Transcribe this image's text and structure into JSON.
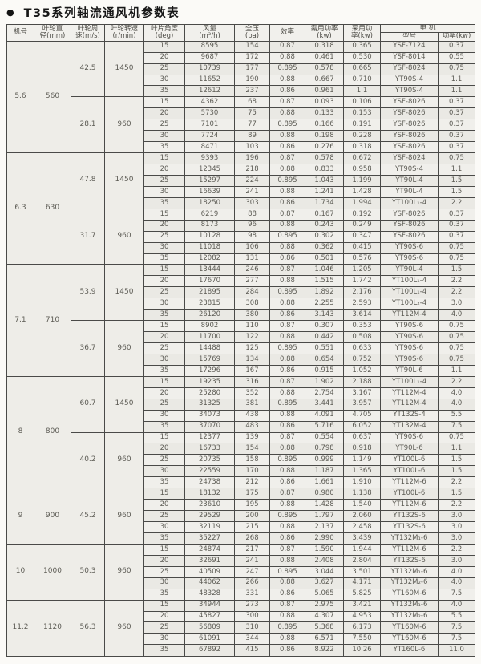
{
  "title": "T35系列轴流通风机参数表",
  "bullet": "●",
  "colors": {
    "page_bg": "#fbfaf7",
    "cell_bg": "#f0efeb",
    "border": "#4a4a48",
    "text": "#5d5c55",
    "title_text": "#171717"
  },
  "table": {
    "headers": {
      "fan_no": "机号",
      "diameter": "叶轮直\n径(mm)",
      "tip_speed": "叶轮周\n速(m/s)",
      "rpm": "叶轮转速\n(r/min)",
      "blade_angle": "叶片角度\n(deg)",
      "flow": "风量\n(m³/h)",
      "pressure": "全压\n(pa)",
      "efficiency": "效率",
      "required_power": "需用功率\n(kw)",
      "adopted_power": "采用功\n率(kw)",
      "motor": "电  机",
      "motor_model": "型号",
      "motor_power": "功率(kw)"
    },
    "column_semantics": [
      "blade_angle_deg",
      "flow_m3h",
      "pressure_pa",
      "efficiency",
      "required_power_kw",
      "adopted_power_kw",
      "motor_model",
      "motor_power_kw"
    ],
    "blocks": [
      {
        "no": "5.6",
        "diameter": "560",
        "groups": [
          {
            "speed": "42.5",
            "rpm": "1450",
            "rows": [
              [
                "15",
                "8595",
                "154",
                "0.87",
                "0.318",
                "0.365",
                "YSF-7124",
                "0.37"
              ],
              [
                "20",
                "9687",
                "172",
                "0.88",
                "0.461",
                "0.530",
                "YSF-8014",
                "0.55"
              ],
              [
                "25",
                "10739",
                "177",
                "0.895",
                "0.578",
                "0.665",
                "YSF-8024",
                "0.75"
              ],
              [
                "30",
                "11652",
                "190",
                "0.88",
                "0.667",
                "0.710",
                "YT90S-4",
                "1.1"
              ],
              [
                "35",
                "12612",
                "237",
                "0.86",
                "0.961",
                "1.1",
                "YT90S-4",
                "1.1"
              ]
            ]
          },
          {
            "speed": "28.1",
            "rpm": "960",
            "rows": [
              [
                "15",
                "4362",
                "68",
                "0.87",
                "0.093",
                "0.106",
                "YSF-8026",
                "0.37"
              ],
              [
                "20",
                "5730",
                "75",
                "0.88",
                "0.133",
                "0.153",
                "YSF-8026",
                "0.37"
              ],
              [
                "25",
                "7101",
                "77",
                "0.895",
                "0.166",
                "0.191",
                "YSF-8026",
                "0.37"
              ],
              [
                "30",
                "7724",
                "89",
                "0.88",
                "0.198",
                "0.228",
                "YSF-8026",
                "0.37"
              ],
              [
                "35",
                "8471",
                "103",
                "0.86",
                "0.276",
                "0.318",
                "YSF-8026",
                "0.37"
              ]
            ]
          }
        ]
      },
      {
        "no": "6.3",
        "diameter": "630",
        "groups": [
          {
            "speed": "47.8",
            "rpm": "1450",
            "rows": [
              [
                "15",
                "9393",
                "196",
                "0.87",
                "0.578",
                "0.672",
                "YSF-8024",
                "0.75"
              ],
              [
                "20",
                "12345",
                "218",
                "0.88",
                "0.833",
                "0.958",
                "YT90S-4",
                "1.1"
              ],
              [
                "25",
                "15297",
                "224",
                "0.895",
                "1.043",
                "1.199",
                "YT90L-4",
                "1.5"
              ],
              [
                "30",
                "16639",
                "241",
                "0.88",
                "1.241",
                "1.428",
                "YT90L-4",
                "1.5"
              ],
              [
                "35",
                "18250",
                "303",
                "0.86",
                "1.734",
                "1.994",
                "YT100L₁-4",
                "2.2"
              ]
            ]
          },
          {
            "speed": "31.7",
            "rpm": "960",
            "rows": [
              [
                "15",
                "6219",
                "88",
                "0.87",
                "0.167",
                "0.192",
                "YSF-8026",
                "0.37"
              ],
              [
                "20",
                "8173",
                "96",
                "0.88",
                "0.243",
                "0.249",
                "YSF-8026",
                "0.37"
              ],
              [
                "25",
                "10128",
                "98",
                "0.895",
                "0.302",
                "0.347",
                "YSF-8026",
                "0.37"
              ],
              [
                "30",
                "11018",
                "106",
                "0.88",
                "0.362",
                "0.415",
                "YT90S-6",
                "0.75"
              ],
              [
                "35",
                "12082",
                "131",
                "0.86",
                "0.501",
                "0.576",
                "YT90S-6",
                "0.75"
              ]
            ]
          }
        ]
      },
      {
        "no": "7.1",
        "diameter": "710",
        "groups": [
          {
            "speed": "53.9",
            "rpm": "1450",
            "rows": [
              [
                "15",
                "13444",
                "246",
                "0.87",
                "1.046",
                "1.205",
                "YT90L-4",
                "1.5"
              ],
              [
                "20",
                "17670",
                "277",
                "0.88",
                "1.515",
                "1.742",
                "YT100L₁-4",
                "2.2"
              ],
              [
                "25",
                "21895",
                "284",
                "0.895",
                "1.892",
                "2.176",
                "YT100L₁-4",
                "2.2"
              ],
              [
                "30",
                "23815",
                "308",
                "0.88",
                "2.255",
                "2.593",
                "YT100L₂-4",
                "3.0"
              ],
              [
                "35",
                "26120",
                "380",
                "0.86",
                "3.143",
                "3.614",
                "YT112M-4",
                "4.0"
              ]
            ]
          },
          {
            "speed": "36.7",
            "rpm": "960",
            "rows": [
              [
                "15",
                "8902",
                "110",
                "0.87",
                "0.307",
                "0.353",
                "YT90S-6",
                "0.75"
              ],
              [
                "20",
                "11700",
                "122",
                "0.88",
                "0.442",
                "0.508",
                "YT90S-6",
                "0.75"
              ],
              [
                "25",
                "14488",
                "125",
                "0.895",
                "0.551",
                "0.633",
                "YT90S-6",
                "0.75"
              ],
              [
                "30",
                "15769",
                "134",
                "0.88",
                "0.654",
                "0.752",
                "YT90S-6",
                "0.75"
              ],
              [
                "35",
                "17296",
                "167",
                "0.86",
                "0.915",
                "1.052",
                "YT90L-6",
                "1.1"
              ]
            ]
          }
        ]
      },
      {
        "no": "8",
        "diameter": "800",
        "groups": [
          {
            "speed": "60.7",
            "rpm": "1450",
            "rows": [
              [
                "15",
                "19235",
                "316",
                "0.87",
                "1.902",
                "2.188",
                "YT100L₁-4",
                "2.2"
              ],
              [
                "20",
                "25280",
                "352",
                "0.88",
                "2.754",
                "3.167",
                "YT112M-4",
                "4.0"
              ],
              [
                "25",
                "31325",
                "381",
                "0.895",
                "3.441",
                "3.957",
                "YT112M-4",
                "4.0"
              ],
              [
                "30",
                "34073",
                "438",
                "0.88",
                "4.091",
                "4.705",
                "YT132S-4",
                "5.5"
              ],
              [
                "35",
                "37070",
                "483",
                "0.86",
                "5.716",
                "6.052",
                "YT132M-4",
                "7.5"
              ]
            ]
          },
          {
            "speed": "40.2",
            "rpm": "960",
            "rows": [
              [
                "15",
                "12377",
                "139",
                "0.87",
                "0.554",
                "0.637",
                "YT90S-6",
                "0.75"
              ],
              [
                "20",
                "16733",
                "154",
                "0.88",
                "0.798",
                "0.918",
                "YT90L-6",
                "1.1"
              ],
              [
                "25",
                "20735",
                "158",
                "0.895",
                "0.999",
                "1.149",
                "YT100L-6",
                "1.5"
              ],
              [
                "30",
                "22559",
                "170",
                "0.88",
                "1.187",
                "1.365",
                "YT100L-6",
                "1.5"
              ],
              [
                "35",
                "24738",
                "212",
                "0.86",
                "1.661",
                "1.910",
                "YT112M-6",
                "2.2"
              ]
            ]
          }
        ]
      },
      {
        "no": "9",
        "diameter": "900",
        "groups": [
          {
            "speed": "45.2",
            "rpm": "960",
            "rows": [
              [
                "15",
                "18132",
                "175",
                "0.87",
                "0.980",
                "1.138",
                "YT100L-6",
                "1.5"
              ],
              [
                "20",
                "23610",
                "195",
                "0.88",
                "1.428",
                "1.540",
                "YT112M-6",
                "2.2"
              ],
              [
                "25",
                "29529",
                "200",
                "0.895",
                "1.797",
                "2.060",
                "YT132S-6",
                "3.0"
              ],
              [
                "30",
                "32119",
                "215",
                "0.88",
                "2.137",
                "2.458",
                "YT132S-6",
                "3.0"
              ],
              [
                "35",
                "35227",
                "268",
                "0.86",
                "2.990",
                "3.439",
                "YT132M₁-6",
                "3.0"
              ]
            ]
          }
        ]
      },
      {
        "no": "10",
        "diameter": "1000",
        "groups": [
          {
            "speed": "50.3",
            "rpm": "960",
            "rows": [
              [
                "15",
                "24874",
                "217",
                "0.87",
                "1.590",
                "1.944",
                "YT112M-6",
                "2.2"
              ],
              [
                "20",
                "32691",
                "241",
                "0.88",
                "2.408",
                "2.804",
                "YT132S-6",
                "3.0"
              ],
              [
                "25",
                "40509",
                "247",
                "0.895",
                "3.044",
                "3.501",
                "YT132M₁-6",
                "4.0"
              ],
              [
                "30",
                "44062",
                "266",
                "0.88",
                "3.627",
                "4.171",
                "YT132M₂-6",
                "4.0"
              ],
              [
                "35",
                "48328",
                "331",
                "0.86",
                "5.065",
                "5.825",
                "YT160M-6",
                "7.5"
              ]
            ]
          }
        ]
      },
      {
        "no": "11.2",
        "diameter": "1120",
        "groups": [
          {
            "speed": "56.3",
            "rpm": "960",
            "rows": [
              [
                "15",
                "34944",
                "273",
                "0.87",
                "2.975",
                "3.421",
                "YT132M₁-6",
                "4.0"
              ],
              [
                "20",
                "45827",
                "300",
                "0.88",
                "4.307",
                "4.953",
                "YT132M₂-6",
                "5.5"
              ],
              [
                "25",
                "56809",
                "310",
                "0.895",
                "5.368",
                "6.173",
                "YT160M-6",
                "7.5"
              ],
              [
                "30",
                "61091",
                "344",
                "0.88",
                "6.571",
                "7.550",
                "YT160M-6",
                "7.5"
              ],
              [
                "35",
                "67892",
                "415",
                "0.86",
                "8.922",
                "10.26",
                "YT160L-6",
                "11.0"
              ]
            ]
          }
        ]
      }
    ]
  }
}
